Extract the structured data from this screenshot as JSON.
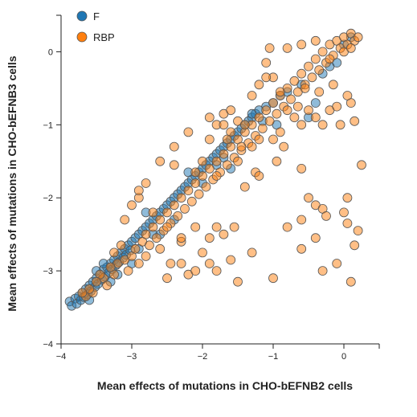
{
  "chart_data": {
    "type": "scatter",
    "title": "",
    "xlabel": "Mean effects of mutations in CHO-bEFNB2 cells",
    "ylabel": "Mean effects of mutations in CHO-bEFNB3 cells",
    "xlim": [
      -4,
      0.5
    ],
    "ylim": [
      -4,
      0.5
    ],
    "xticks": [
      -4,
      -3,
      -2,
      -1,
      0
    ],
    "yticks": [
      -4,
      -3,
      -2,
      -1,
      0
    ],
    "grid": false,
    "legend": "top-left",
    "series": [
      {
        "name": "F",
        "color": "#1f77b4",
        "points": [
          [
            -3.88,
            -3.42
          ],
          [
            -3.85,
            -3.48
          ],
          [
            -3.8,
            -3.38
          ],
          [
            -3.78,
            -3.45
          ],
          [
            -3.75,
            -3.35
          ],
          [
            -3.72,
            -3.4
          ],
          [
            -3.7,
            -3.3
          ],
          [
            -3.68,
            -3.36
          ],
          [
            -3.65,
            -3.25
          ],
          [
            -3.62,
            -3.32
          ],
          [
            -3.6,
            -3.2
          ],
          [
            -3.58,
            -3.28
          ],
          [
            -3.55,
            -3.15
          ],
          [
            -3.52,
            -3.22
          ],
          [
            -3.5,
            -3.1
          ],
          [
            -3.48,
            -3.18
          ],
          [
            -3.45,
            -3.05
          ],
          [
            -3.42,
            -3.12
          ],
          [
            -3.4,
            -2.98
          ],
          [
            -3.38,
            -3.08
          ],
          [
            -3.35,
            -2.95
          ],
          [
            -3.32,
            -3.02
          ],
          [
            -3.3,
            -2.9
          ],
          [
            -3.28,
            -2.98
          ],
          [
            -3.25,
            -2.85
          ],
          [
            -3.22,
            -2.92
          ],
          [
            -3.2,
            -2.8
          ],
          [
            -3.18,
            -2.88
          ],
          [
            -3.15,
            -2.75
          ],
          [
            -3.12,
            -2.82
          ],
          [
            -3.1,
            -2.7
          ],
          [
            -3.08,
            -2.78
          ],
          [
            -3.05,
            -2.65
          ],
          [
            -3.02,
            -2.72
          ],
          [
            -3.0,
            -2.6
          ],
          [
            -2.95,
            -2.55
          ],
          [
            -2.9,
            -2.5
          ],
          [
            -2.85,
            -2.45
          ],
          [
            -2.8,
            -2.4
          ],
          [
            -2.75,
            -2.35
          ],
          [
            -2.7,
            -2.3
          ],
          [
            -2.65,
            -2.25
          ],
          [
            -2.6,
            -2.2
          ],
          [
            -2.55,
            -2.15
          ],
          [
            -2.5,
            -2.1
          ],
          [
            -2.45,
            -2.05
          ],
          [
            -2.4,
            -2.0
          ],
          [
            -2.35,
            -1.95
          ],
          [
            -2.3,
            -1.9
          ],
          [
            -2.25,
            -1.85
          ],
          [
            -2.2,
            -1.8
          ],
          [
            -2.15,
            -1.75
          ],
          [
            -2.1,
            -1.7
          ],
          [
            -2.05,
            -1.65
          ],
          [
            -2.0,
            -1.6
          ],
          [
            -1.95,
            -1.55
          ],
          [
            -1.9,
            -1.5
          ],
          [
            -1.85,
            -1.45
          ],
          [
            -1.8,
            -1.4
          ],
          [
            -1.75,
            -1.35
          ],
          [
            -1.7,
            -1.3
          ],
          [
            -1.65,
            -1.25
          ],
          [
            -1.6,
            -1.2
          ],
          [
            -1.55,
            -1.15
          ],
          [
            -1.5,
            -1.1
          ],
          [
            -1.45,
            -1.05
          ],
          [
            -1.4,
            -1.0
          ],
          [
            -1.35,
            -0.95
          ],
          [
            -1.3,
            -0.9
          ],
          [
            -1.25,
            -0.85
          ],
          [
            -1.2,
            -0.8
          ],
          [
            -1.1,
            -0.75
          ],
          [
            -1.0,
            -0.7
          ],
          [
            -0.9,
            -0.6
          ],
          [
            -0.8,
            -0.55
          ],
          [
            -0.6,
            -0.45
          ],
          [
            -0.5,
            -0.9
          ],
          [
            -0.4,
            -0.7
          ],
          [
            -0.3,
            -0.3
          ],
          [
            -0.2,
            -0.2
          ],
          [
            -0.1,
            -0.15
          ],
          [
            0.0,
            0.1
          ],
          [
            0.1,
            0.2
          ],
          [
            -3.4,
            -2.9
          ],
          [
            -2.8,
            -2.2
          ],
          [
            -2.2,
            -1.65
          ],
          [
            -1.7,
            -1.45
          ],
          [
            -1.6,
            -1.6
          ],
          [
            -2.4,
            -2.3
          ],
          [
            -2.6,
            -2.5
          ],
          [
            -3.0,
            -2.9
          ],
          [
            -3.2,
            -3.05
          ],
          [
            -1.3,
            -0.85
          ],
          [
            -1.15,
            -0.95
          ],
          [
            -0.95,
            -1.0
          ],
          [
            -2.7,
            -2.5
          ],
          [
            -3.5,
            -3.0
          ],
          [
            -2.0,
            -1.8
          ],
          [
            -1.8,
            -1.55
          ],
          [
            -2.9,
            -2.7
          ],
          [
            -3.3,
            -3.15
          ],
          [
            -3.6,
            -3.4
          ]
        ]
      },
      {
        "name": "RBP",
        "color": "#ff7f0e",
        "points": [
          [
            -3.65,
            -3.35
          ],
          [
            -3.55,
            -3.3
          ],
          [
            -3.4,
            -3.1
          ],
          [
            -3.35,
            -3.2
          ],
          [
            -3.25,
            -3.05
          ],
          [
            -3.2,
            -2.9
          ],
          [
            -3.1,
            -2.85
          ],
          [
            -3.05,
            -3.0
          ],
          [
            -3.0,
            -2.8
          ],
          [
            -2.95,
            -2.7
          ],
          [
            -2.9,
            -2.9
          ],
          [
            -2.85,
            -2.6
          ],
          [
            -2.8,
            -2.5
          ],
          [
            -2.75,
            -2.65
          ],
          [
            -2.7,
            -2.4
          ],
          [
            -2.65,
            -2.55
          ],
          [
            -2.6,
            -2.3
          ],
          [
            -2.55,
            -2.45
          ],
          [
            -2.5,
            -2.2
          ],
          [
            -2.45,
            -2.35
          ],
          [
            -2.4,
            -2.1
          ],
          [
            -2.35,
            -2.25
          ],
          [
            -2.3,
            -2.0
          ],
          [
            -2.25,
            -2.15
          ],
          [
            -2.2,
            -1.9
          ],
          [
            -2.15,
            -2.05
          ],
          [
            -2.1,
            -1.8
          ],
          [
            -2.05,
            -1.95
          ],
          [
            -2.0,
            -1.7
          ],
          [
            -1.95,
            -1.85
          ],
          [
            -1.9,
            -1.6
          ],
          [
            -1.85,
            -1.75
          ],
          [
            -1.8,
            -1.5
          ],
          [
            -1.75,
            -1.65
          ],
          [
            -1.7,
            -1.4
          ],
          [
            -1.65,
            -1.55
          ],
          [
            -1.6,
            -1.3
          ],
          [
            -1.55,
            -1.45
          ],
          [
            -1.5,
            -1.2
          ],
          [
            -1.45,
            -1.35
          ],
          [
            -1.4,
            -1.1
          ],
          [
            -1.35,
            -1.25
          ],
          [
            -1.3,
            -1.0
          ],
          [
            -1.25,
            -1.15
          ],
          [
            -1.2,
            -0.9
          ],
          [
            -1.15,
            -1.05
          ],
          [
            -1.1,
            -0.8
          ],
          [
            -1.05,
            -0.95
          ],
          [
            -1.0,
            -0.7
          ],
          [
            -0.95,
            -0.85
          ],
          [
            -0.9,
            -0.6
          ],
          [
            -0.85,
            -0.75
          ],
          [
            -0.8,
            -0.5
          ],
          [
            -0.75,
            -0.65
          ],
          [
            -0.7,
            -0.4
          ],
          [
            -0.65,
            -0.55
          ],
          [
            -0.6,
            -0.3
          ],
          [
            -0.55,
            -0.45
          ],
          [
            -0.5,
            -0.2
          ],
          [
            -0.45,
            -0.35
          ],
          [
            -0.4,
            -0.1
          ],
          [
            -0.35,
            -0.25
          ],
          [
            -0.3,
            0.0
          ],
          [
            -0.25,
            -0.15
          ],
          [
            -0.2,
            0.1
          ],
          [
            -0.15,
            -0.05
          ],
          [
            -0.1,
            0.15
          ],
          [
            -0.05,
            0.05
          ],
          [
            0.0,
            0.2
          ],
          [
            0.05,
            0.1
          ],
          [
            0.1,
            0.25
          ],
          [
            0.15,
            0.15
          ],
          [
            0.2,
            0.2
          ],
          [
            0.0,
            0.0
          ],
          [
            0.1,
            0.05
          ],
          [
            -0.2,
            -0.1
          ],
          [
            -0.4,
            0.15
          ],
          [
            -0.6,
            0.1
          ],
          [
            -0.8,
            0.05
          ],
          [
            -1.05,
            0.05
          ],
          [
            -1.1,
            -0.15
          ],
          [
            -1.0,
            -0.35
          ],
          [
            -0.9,
            -0.55
          ],
          [
            -0.8,
            -0.8
          ],
          [
            -0.7,
            -0.9
          ],
          [
            -0.6,
            -1.0
          ],
          [
            -0.5,
            -0.8
          ],
          [
            -0.4,
            -0.9
          ],
          [
            -0.3,
            -1.0
          ],
          [
            -0.2,
            -0.8
          ],
          [
            -0.1,
            -0.75
          ],
          [
            0.1,
            -0.7
          ],
          [
            0.15,
            -0.95
          ],
          [
            -3.0,
            -2.1
          ],
          [
            -2.8,
            -1.8
          ],
          [
            -2.6,
            -1.5
          ],
          [
            -2.4,
            -1.3
          ],
          [
            -2.2,
            -1.1
          ],
          [
            -1.9,
            -0.9
          ],
          [
            -1.7,
            -0.85
          ],
          [
            -1.5,
            -0.95
          ],
          [
            -1.3,
            -0.6
          ],
          [
            -1.2,
            -0.45
          ],
          [
            -1.1,
            -0.35
          ],
          [
            -1.8,
            -1.0
          ],
          [
            -1.6,
            -0.8
          ],
          [
            -2.0,
            -1.5
          ],
          [
            -1.9,
            -1.2
          ],
          [
            -1.7,
            -1.0
          ],
          [
            -1.6,
            -1.1
          ],
          [
            -1.4,
            -1.0
          ],
          [
            -1.3,
            -1.3
          ],
          [
            -0.85,
            -1.3
          ],
          [
            -0.9,
            -1.1
          ],
          [
            -1.0,
            -1.2
          ],
          [
            -2.5,
            -3.1
          ],
          [
            -2.2,
            -3.05
          ],
          [
            -2.1,
            -3.0
          ],
          [
            -1.9,
            -2.9
          ],
          [
            -1.8,
            -3.0
          ],
          [
            -1.6,
            -2.85
          ],
          [
            -1.5,
            -3.15
          ],
          [
            -1.3,
            -2.75
          ],
          [
            -1.0,
            -3.1
          ],
          [
            -0.6,
            -2.7
          ],
          [
            -0.4,
            -2.55
          ],
          [
            -0.3,
            -3.0
          ],
          [
            -0.1,
            -2.9
          ],
          [
            0.1,
            -3.15
          ],
          [
            0.15,
            -2.65
          ],
          [
            -0.8,
            -2.4
          ],
          [
            -0.6,
            -2.3
          ],
          [
            -0.4,
            -2.1
          ],
          [
            -0.3,
            -2.15
          ],
          [
            0.0,
            -2.2
          ],
          [
            0.05,
            -2.35
          ],
          [
            0.2,
            -2.45
          ],
          [
            -2.4,
            -1.55
          ],
          [
            -2.1,
            -1.65
          ],
          [
            -1.8,
            -1.7
          ],
          [
            -1.5,
            -1.5
          ],
          [
            -1.4,
            -1.85
          ],
          [
            -1.25,
            -1.65
          ],
          [
            -2.3,
            -2.9
          ],
          [
            -2.9,
            -2.0
          ],
          [
            -3.1,
            -2.3
          ],
          [
            -2.9,
            -1.9
          ],
          [
            -2.7,
            -2.2
          ],
          [
            -2.5,
            -2.4
          ],
          [
            -2.3,
            -2.6
          ],
          [
            -2.1,
            -2.4
          ],
          [
            -1.9,
            -2.55
          ],
          [
            -1.8,
            -2.4
          ],
          [
            -1.7,
            -2.5
          ],
          [
            -1.55,
            -2.4
          ],
          [
            -2.0,
            -2.75
          ],
          [
            -2.3,
            -2.55
          ],
          [
            -2.6,
            -2.7
          ],
          [
            -2.8,
            -2.8
          ],
          [
            -2.45,
            -2.9
          ],
          [
            -1.2,
            -1.7
          ],
          [
            -0.95,
            -1.5
          ],
          [
            -0.6,
            -1.6
          ],
          [
            -0.5,
            -2.0
          ],
          [
            -0.25,
            -2.25
          ],
          [
            0.05,
            -2.0
          ],
          [
            0.25,
            -1.55
          ],
          [
            -0.65,
            -0.75
          ],
          [
            -0.05,
            -1.0
          ],
          [
            0.05,
            -0.6
          ],
          [
            -0.35,
            -0.55
          ],
          [
            -0.15,
            -0.45
          ],
          [
            -0.55,
            -0.5
          ],
          [
            -1.2,
            -1.2
          ],
          [
            -1.45,
            -1.3
          ],
          [
            -1.65,
            -1.2
          ],
          [
            -3.25,
            -2.75
          ],
          [
            -3.15,
            -2.65
          ],
          [
            -3.3,
            -2.95
          ],
          [
            -3.45,
            -3.05
          ],
          [
            -3.5,
            -3.15
          ],
          [
            -3.6,
            -3.25
          ],
          [
            -3.7,
            -3.3
          ]
        ]
      }
    ]
  }
}
